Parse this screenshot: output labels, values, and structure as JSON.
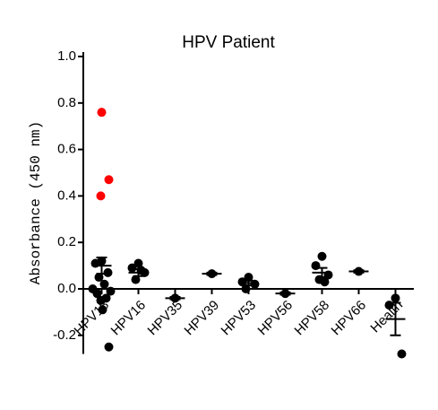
{
  "chart_data": {
    "type": "dot",
    "title": "HPV Patient",
    "y_label": "Absorbance (450 nm)",
    "categories": [
      "HPV18",
      "HPV16",
      "HPV35",
      "HPV39",
      "HPV53",
      "HPV56",
      "HPV58",
      "HPV66",
      "Health"
    ],
    "series": [
      {
        "color": "#000000",
        "values": [
          [
            0.12,
            0.11,
            0.07,
            0.05,
            0.02,
            0.0,
            -0.01,
            -0.02,
            -0.04,
            -0.05,
            -0.09,
            -0.25
          ],
          [
            0.11,
            0.09,
            0.07,
            0.04,
            0.08
          ],
          [
            -0.04
          ],
          [
            0.065
          ],
          [
            0.05,
            0.03,
            0.02,
            0.0
          ],
          [
            -0.02
          ],
          [
            0.14,
            0.1,
            0.06,
            0.04,
            0.03
          ],
          [
            0.075
          ],
          [
            -0.04,
            -0.07,
            -0.28
          ]
        ]
      },
      {
        "color": "#ff0000",
        "values": [
          [
            0.76,
            0.47,
            0.4
          ],
          [],
          [],
          [],
          [],
          [],
          [],
          [],
          []
        ]
      }
    ],
    "means": [
      0.1,
      0.07,
      -0.04,
      0.065,
      0.025,
      -0.02,
      0.07,
      0.075,
      -0.13
    ],
    "sem": [
      0.035,
      0.015,
      0.005,
      0.005,
      0.01,
      0.005,
      0.02,
      0.005,
      0.07
    ],
    "ylim": [
      -0.28,
      1.0
    ],
    "yticks": [
      {
        "value": 1,
        "label": "1.0"
      },
      0.8,
      0.6,
      0.4,
      0.2,
      {
        "value": 0,
        "label": "0.0"
      },
      -0.2
    ]
  }
}
